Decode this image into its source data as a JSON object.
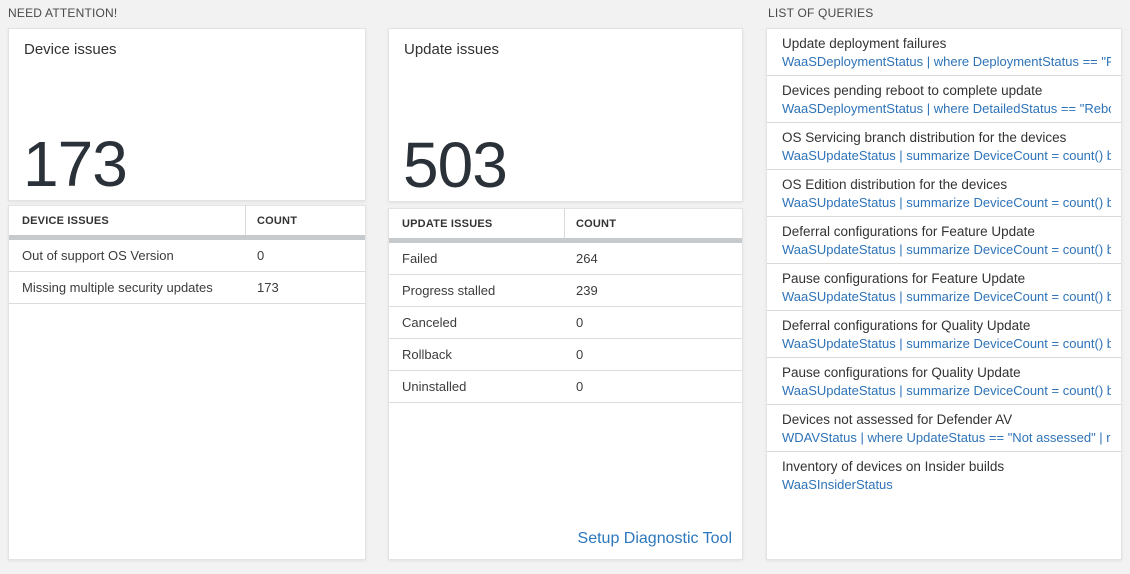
{
  "sections": {
    "need_attention": {
      "label": "NEED ATTENTION!"
    },
    "list_of_queries": {
      "label": "LIST OF QUERIES"
    }
  },
  "device_card": {
    "title": "Device issues",
    "count": "173",
    "table": {
      "headers": [
        "DEVICE ISSUES",
        "COUNT"
      ],
      "rows": [
        {
          "label": "Out of support OS Version",
          "count": "0"
        },
        {
          "label": "Missing multiple security updates",
          "count": "173"
        }
      ]
    }
  },
  "update_card": {
    "title": "Update issues",
    "count": "503",
    "table": {
      "headers": [
        "UPDATE ISSUES",
        "COUNT"
      ],
      "rows": [
        {
          "label": "Failed",
          "count": "264"
        },
        {
          "label": "Progress stalled",
          "count": "239"
        },
        {
          "label": "Canceled",
          "count": "0"
        },
        {
          "label": "Rollback",
          "count": "0"
        },
        {
          "label": "Uninstalled",
          "count": "0"
        }
      ]
    },
    "footer_link": "Setup Diagnostic Tool"
  },
  "queries": {
    "items": [
      {
        "title": "Update deployment failures",
        "query": "WaaSDeploymentStatus | where DeploymentStatus == \"Failed\" |..."
      },
      {
        "title": "Devices pending reboot to complete update",
        "query": "WaaSDeploymentStatus | where DetailedStatus == \"Reboot pend..."
      },
      {
        "title": "OS Servicing branch distribution for the devices",
        "query": "WaaSUpdateStatus | summarize DeviceCount = count() by OSSer..."
      },
      {
        "title": "OS Edition distribution for the devices",
        "query": "WaaSUpdateStatus | summarize DeviceCount = count() by OSEdit..."
      },
      {
        "title": "Deferral configurations for Feature Update",
        "query": "WaaSUpdateStatus | summarize DeviceCount = count() by Featur..."
      },
      {
        "title": "Pause configurations for Feature Update",
        "query": "WaaSUpdateStatus | summarize DeviceCount = count() by Featur..."
      },
      {
        "title": "Deferral configurations for Quality Update",
        "query": "WaaSUpdateStatus | summarize DeviceCount = count() by Qualit..."
      },
      {
        "title": "Pause configurations for Quality Update",
        "query": "WaaSUpdateStatus | summarize DeviceCount = count() by Qualit..."
      },
      {
        "title": "Devices not assessed for Defender AV",
        "query": "WDAVStatus | where UpdateStatus == \"Not assessed\" | render ta..."
      },
      {
        "title": "Inventory of devices on Insider builds",
        "query": "WaaSInsiderStatus"
      }
    ]
  },
  "colors": {
    "background": "#f2f2f2",
    "link_blue": "#2e73b8",
    "big_number": "#2b3138",
    "header_bar": "#c7cacc"
  }
}
